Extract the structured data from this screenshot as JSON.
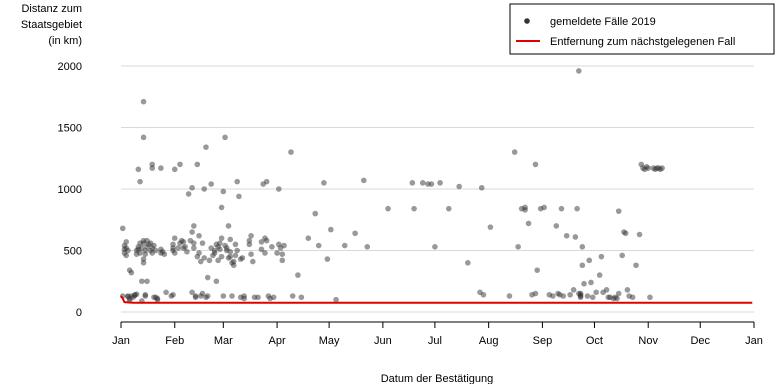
{
  "chart_data": {
    "type": "scatter",
    "ylabel": [
      "Distanz zum",
      "Staatsgebiet",
      "(in km)"
    ],
    "xlabel": "Datum der Bestätigung",
    "x_ticks": [
      "Jan",
      "Feb",
      "Mar",
      "Apr",
      "May",
      "Jun",
      "Jul",
      "Aug",
      "Sep",
      "Oct",
      "Nov",
      "Dec",
      "Jan"
    ],
    "y_ticks": [
      "0",
      "500",
      "1000",
      "1500",
      "2000"
    ],
    "xlim": [
      "2019-01-01",
      "2020-01-01"
    ],
    "ylim": [
      0,
      2000
    ],
    "grid": "horizontal",
    "legend_position": "top-right",
    "series": [
      {
        "name": "gemeldete Fälle 2019",
        "kind": "points",
        "color": "#333333",
        "x_unit": "day of year 2019",
        "points": [
          [
            2,
            680
          ],
          [
            2,
            130
          ],
          [
            3,
            480
          ],
          [
            3,
            510
          ],
          [
            3,
            540
          ],
          [
            4,
            570
          ],
          [
            4,
            460
          ],
          [
            4,
            520
          ],
          [
            5,
            500
          ],
          [
            5,
            130
          ],
          [
            5,
            125
          ],
          [
            6,
            110
          ],
          [
            6,
            95
          ],
          [
            6,
            340
          ],
          [
            7,
            320
          ],
          [
            7,
            130
          ],
          [
            8,
            120
          ],
          [
            9,
            135
          ],
          [
            9,
            140
          ],
          [
            10,
            145
          ],
          [
            10,
            500
          ],
          [
            10,
            470
          ],
          [
            11,
            1160
          ],
          [
            11,
            510
          ],
          [
            11,
            530
          ],
          [
            12,
            1060
          ],
          [
            12,
            480
          ],
          [
            12,
            560
          ],
          [
            13,
            520
          ],
          [
            13,
            250
          ],
          [
            13,
            90
          ],
          [
            14,
            580
          ],
          [
            14,
            1420
          ],
          [
            14,
            1710
          ],
          [
            14,
            560
          ],
          [
            14,
            430
          ],
          [
            14,
            400
          ],
          [
            15,
            470
          ],
          [
            15,
            500
          ],
          [
            15,
            140
          ],
          [
            15,
            130
          ],
          [
            16,
            530
          ],
          [
            16,
            250
          ],
          [
            16,
            580
          ],
          [
            17,
            550
          ],
          [
            18,
            560
          ],
          [
            18,
            500
          ],
          [
            19,
            1170
          ],
          [
            19,
            1200
          ],
          [
            19,
            520
          ],
          [
            19,
            480
          ],
          [
            20,
            120
          ],
          [
            20,
            540
          ],
          [
            21,
            500
          ],
          [
            21,
            120
          ],
          [
            22,
            110
          ],
          [
            22,
            100
          ],
          [
            24,
            480
          ],
          [
            24,
            510
          ],
          [
            24,
            1170
          ],
          [
            25,
            490
          ],
          [
            26,
            470
          ],
          [
            27,
            160
          ],
          [
            30,
            130
          ],
          [
            31,
            140
          ],
          [
            31,
            500
          ],
          [
            31,
            520
          ],
          [
            31,
            550
          ],
          [
            32,
            600
          ],
          [
            32,
            1160
          ],
          [
            32,
            480
          ],
          [
            34,
            520
          ],
          [
            35,
            560
          ],
          [
            35,
            1200
          ],
          [
            36,
            580
          ],
          [
            37,
            570
          ],
          [
            37,
            520
          ],
          [
            38,
            530
          ],
          [
            39,
            490
          ],
          [
            40,
            960
          ],
          [
            41,
            580
          ],
          [
            42,
            1010
          ],
          [
            42,
            160
          ],
          [
            42,
            650
          ],
          [
            43,
            560
          ],
          [
            43,
            520
          ],
          [
            43,
            700
          ],
          [
            44,
            130
          ],
          [
            44,
            120
          ],
          [
            45,
            1200
          ],
          [
            45,
            450
          ],
          [
            46,
            480
          ],
          [
            46,
            620
          ],
          [
            47,
            410
          ],
          [
            47,
            130
          ],
          [
            48,
            150
          ],
          [
            48,
            560
          ],
          [
            49,
            1000
          ],
          [
            49,
            440
          ],
          [
            50,
            1340
          ],
          [
            50,
            120
          ],
          [
            51,
            130
          ],
          [
            51,
            280
          ],
          [
            52,
            420
          ],
          [
            53,
            1040
          ],
          [
            53,
            520
          ],
          [
            54,
            460
          ],
          [
            55,
            480
          ],
          [
            55,
            500
          ],
          [
            56,
            250
          ],
          [
            56,
            550
          ],
          [
            57,
            420
          ],
          [
            57,
            530
          ],
          [
            58,
            510
          ],
          [
            58,
            560
          ],
          [
            59,
            600
          ],
          [
            59,
            450
          ],
          [
            59,
            850
          ],
          [
            60,
            980
          ],
          [
            60,
            130
          ],
          [
            61,
            1420
          ],
          [
            61,
            540
          ],
          [
            62,
            520
          ],
          [
            62,
            500
          ],
          [
            63,
            440
          ],
          [
            63,
            700
          ],
          [
            64,
            590
          ],
          [
            64,
            450
          ],
          [
            64,
            490
          ],
          [
            65,
            400
          ],
          [
            65,
            130
          ],
          [
            66,
            380
          ],
          [
            66,
            410
          ],
          [
            67,
            460
          ],
          [
            67,
            550
          ],
          [
            68,
            1060
          ],
          [
            68,
            500
          ],
          [
            69,
            940
          ],
          [
            70,
            430
          ],
          [
            70,
            120
          ],
          [
            71,
            440
          ],
          [
            72,
            130
          ],
          [
            72,
            110
          ],
          [
            75,
            580
          ],
          [
            75,
            550
          ],
          [
            76,
            620
          ],
          [
            76,
            470
          ],
          [
            77,
            410
          ],
          [
            78,
            120
          ],
          [
            80,
            120
          ],
          [
            82,
            570
          ],
          [
            82,
            510
          ],
          [
            83,
            1040
          ],
          [
            84,
            600
          ],
          [
            84,
            480
          ],
          [
            85,
            1060
          ],
          [
            85,
            580
          ],
          [
            86,
            130
          ],
          [
            87,
            110
          ],
          [
            88,
            530
          ],
          [
            89,
            120
          ],
          [
            91,
            480
          ],
          [
            92,
            1000
          ],
          [
            92,
            550
          ],
          [
            93,
            520
          ],
          [
            94,
            420
          ],
          [
            94,
            470
          ],
          [
            95,
            540
          ],
          [
            99,
            1300
          ],
          [
            100,
            130
          ],
          [
            103,
            300
          ],
          [
            105,
            120
          ],
          [
            109,
            600
          ],
          [
            113,
            800
          ],
          [
            115,
            540
          ],
          [
            118,
            1050
          ],
          [
            120,
            430
          ],
          [
            122,
            670
          ],
          [
            125,
            100
          ],
          [
            130,
            540
          ],
          [
            136,
            640
          ],
          [
            141,
            1070
          ],
          [
            143,
            530
          ],
          [
            155,
            840
          ],
          [
            169,
            1050
          ],
          [
            170,
            840
          ],
          [
            175,
            1050
          ],
          [
            178,
            1040
          ],
          [
            180,
            1040
          ],
          [
            182,
            530
          ],
          [
            185,
            1050
          ],
          [
            190,
            840
          ],
          [
            196,
            1020
          ],
          [
            201,
            400
          ],
          [
            208,
            160
          ],
          [
            209,
            1010
          ],
          [
            210,
            140
          ],
          [
            214,
            690
          ],
          [
            225,
            130
          ],
          [
            228,
            1300
          ],
          [
            230,
            530
          ],
          [
            232,
            840
          ],
          [
            234,
            830
          ],
          [
            234,
            850
          ],
          [
            236,
            720
          ],
          [
            238,
            140
          ],
          [
            240,
            1200
          ],
          [
            240,
            150
          ],
          [
            241,
            340
          ],
          [
            243,
            840
          ],
          [
            245,
            850
          ],
          [
            248,
            140
          ],
          [
            250,
            130
          ],
          [
            252,
            700
          ],
          [
            253,
            150
          ],
          [
            254,
            140
          ],
          [
            255,
            840
          ],
          [
            256,
            130
          ],
          [
            258,
            620
          ],
          [
            260,
            140
          ],
          [
            262,
            180
          ],
          [
            263,
            610
          ],
          [
            264,
            840
          ],
          [
            265,
            1960
          ],
          [
            265,
            150
          ],
          [
            266,
            140
          ],
          [
            266,
            150
          ],
          [
            266,
            130
          ],
          [
            266,
            120
          ],
          [
            267,
            380
          ],
          [
            267,
            530
          ],
          [
            268,
            230
          ],
          [
            270,
            130
          ],
          [
            271,
            420
          ],
          [
            272,
            240
          ],
          [
            273,
            120
          ],
          [
            275,
            160
          ],
          [
            277,
            300
          ],
          [
            278,
            450
          ],
          [
            279,
            160
          ],
          [
            281,
            180
          ],
          [
            282,
            120
          ],
          [
            283,
            120
          ],
          [
            285,
            110
          ],
          [
            286,
            120
          ],
          [
            287,
            110
          ],
          [
            288,
            820
          ],
          [
            288,
            150
          ],
          [
            290,
            460
          ],
          [
            291,
            650
          ],
          [
            292,
            640
          ],
          [
            293,
            180
          ],
          [
            294,
            130
          ],
          [
            296,
            120
          ],
          [
            298,
            380
          ],
          [
            300,
            630
          ],
          [
            301,
            1200
          ],
          [
            302,
            1170
          ],
          [
            303,
            1160
          ],
          [
            304,
            1180
          ],
          [
            305,
            1170
          ],
          [
            306,
            120
          ],
          [
            308,
            1170
          ],
          [
            309,
            1160
          ],
          [
            310,
            1170
          ],
          [
            311,
            1170
          ],
          [
            312,
            1160
          ],
          [
            313,
            1170
          ]
        ]
      },
      {
        "name": "Entfernung zum nächstgelegenen Fall",
        "kind": "line",
        "color": "#e00000",
        "points": [
          [
            1,
            130
          ],
          [
            2,
            110
          ],
          [
            3,
            80
          ],
          [
            8,
            75
          ],
          [
            365,
            75
          ]
        ]
      }
    ]
  }
}
